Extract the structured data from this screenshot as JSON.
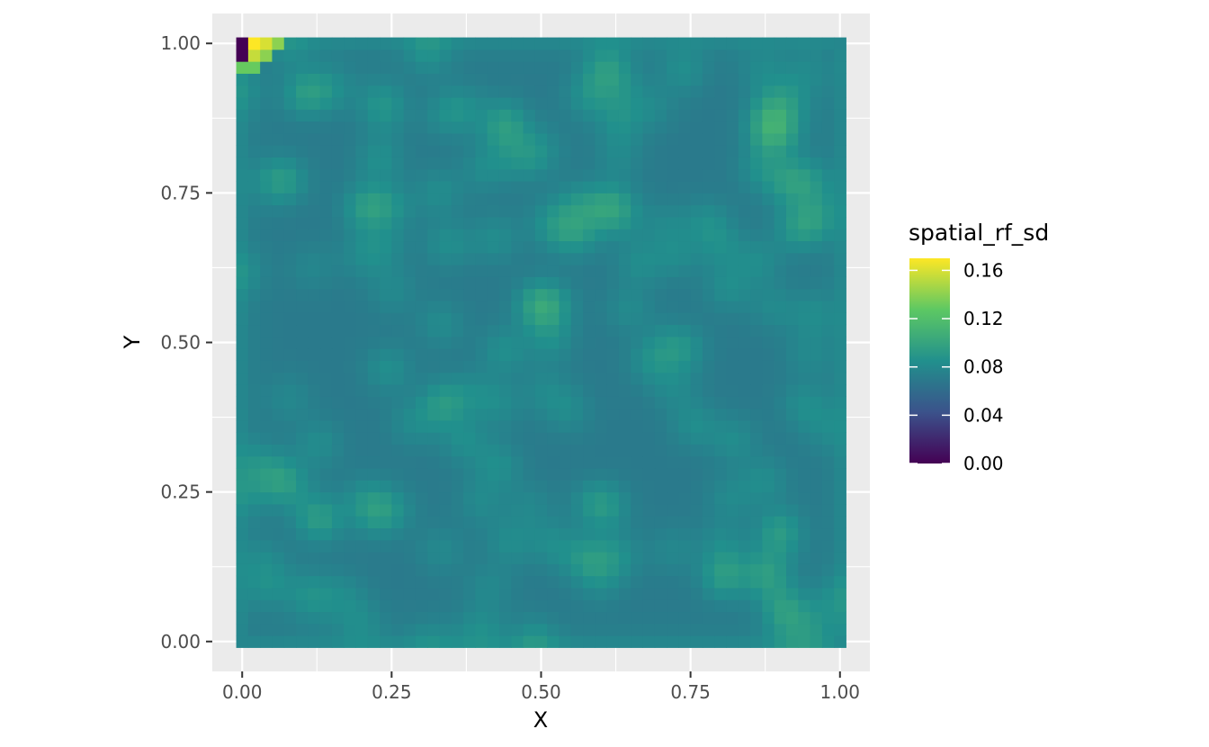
{
  "chart_data": {
    "type": "heatmap",
    "title": "",
    "xlabel": "X",
    "ylabel": "Y",
    "xlim": [
      -0.05,
      1.05
    ],
    "ylim": [
      -0.05,
      1.05
    ],
    "x_ticks": [
      0.0,
      0.25,
      0.5,
      0.75,
      1.0
    ],
    "x_tick_labels": [
      "0.00",
      "0.25",
      "0.50",
      "0.75",
      "1.00"
    ],
    "y_ticks": [
      0.0,
      0.25,
      0.5,
      0.75,
      1.0
    ],
    "y_tick_labels": [
      "0.00",
      "0.25",
      "0.50",
      "0.75",
      "1.00"
    ],
    "grid": true,
    "fill_variable": "spatial_rf_sd",
    "colormap": "viridis",
    "color_range": [
      0.0,
      0.17
    ],
    "grid_resolution": 0.02,
    "cell_count_per_axis": 51,
    "value_range_body": [
      0.07,
      0.11
    ],
    "corner_values": [
      {
        "x": 0.0,
        "y": 1.0,
        "value": 0.0
      },
      {
        "x": 0.02,
        "y": 1.0,
        "value": 0.17
      },
      {
        "x": 0.04,
        "y": 1.0,
        "value": 0.16
      },
      {
        "x": 0.06,
        "y": 1.0,
        "value": 0.14
      },
      {
        "x": 0.02,
        "y": 0.98,
        "value": 0.155
      },
      {
        "x": 0.0,
        "y": 0.98,
        "value": 0.0
      },
      {
        "x": 0.04,
        "y": 0.98,
        "value": 0.14
      },
      {
        "x": 0.02,
        "y": 0.96,
        "value": 0.13
      },
      {
        "x": 0.0,
        "y": 0.96,
        "value": 0.13
      }
    ],
    "legend": {
      "title": "spatial_rf_sd",
      "placement": "right",
      "breaks": [
        0.0,
        0.04,
        0.08,
        0.12,
        0.16
      ],
      "labels": [
        "0.00",
        "0.04",
        "0.08",
        "0.12",
        "0.16"
      ]
    }
  },
  "colors": {
    "panel_background": "#ebebeb",
    "grid_line": "#ffffff",
    "viridis_stops": [
      "#440154",
      "#3b528b",
      "#21908d",
      "#5dc863",
      "#fde725"
    ]
  }
}
